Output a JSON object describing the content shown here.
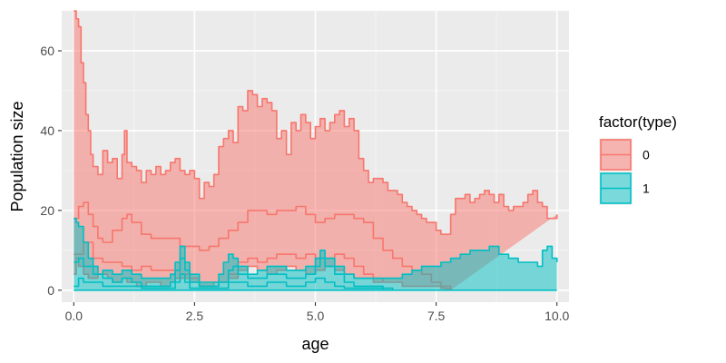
{
  "chart_data": {
    "type": "area",
    "xlabel": "age",
    "ylabel": "Population size",
    "xlim": [
      -0.25,
      10.25
    ],
    "ylim": [
      -3,
      70
    ],
    "xticks": [
      0,
      2.5,
      5,
      7.5,
      10
    ],
    "xtick_labels": [
      "0.0",
      "2.5",
      "5.0",
      "7.5",
      "10.0"
    ],
    "yticks": [
      0,
      20,
      40,
      60
    ],
    "ytick_labels": [
      "0",
      "20",
      "40",
      "60"
    ],
    "grid": true,
    "legend": {
      "title": "factor(type)",
      "position": "right",
      "entries": [
        "0",
        "1"
      ]
    },
    "series": [
      {
        "name": "0",
        "color": "#F8766D",
        "fill": "#F8766D",
        "upper": {
          "x": [
            0.0,
            0.05,
            0.1,
            0.15,
            0.2,
            0.25,
            0.3,
            0.35,
            0.4,
            0.5,
            0.6,
            0.7,
            0.8,
            0.9,
            1.0,
            1.05,
            1.1,
            1.2,
            1.3,
            1.4,
            1.5,
            1.6,
            1.7,
            1.8,
            1.9,
            2.0,
            2.1,
            2.2,
            2.3,
            2.4,
            2.5,
            2.6,
            2.7,
            2.8,
            2.9,
            3.0,
            3.1,
            3.2,
            3.3,
            3.4,
            3.5,
            3.6,
            3.7,
            3.8,
            3.9,
            4.0,
            4.1,
            4.2,
            4.3,
            4.4,
            4.5,
            4.6,
            4.7,
            4.8,
            4.9,
            5.0,
            5.1,
            5.2,
            5.3,
            5.4,
            5.5,
            5.6,
            5.7,
            5.8,
            5.9,
            6.0,
            6.1,
            6.2,
            6.3,
            6.4,
            6.5,
            6.6,
            6.7,
            6.8,
            6.9,
            7.0,
            7.1,
            7.2,
            7.3,
            7.4,
            7.5,
            7.6,
            7.7,
            7.8,
            7.9,
            8.0,
            8.1,
            8.2,
            8.3,
            8.4,
            8.5,
            8.6,
            8.7,
            8.8,
            8.9,
            9.0,
            9.1,
            9.2,
            9.3,
            9.4,
            9.5,
            9.6,
            9.7,
            9.8,
            9.9,
            10.0
          ],
          "y": [
            70,
            68,
            66,
            57,
            52,
            44,
            40,
            34,
            31,
            29,
            35,
            32,
            33,
            28,
            34,
            40,
            32,
            31,
            30,
            27,
            30,
            29,
            31,
            29,
            30,
            32,
            33,
            30,
            29,
            30,
            28,
            23,
            27,
            26,
            29,
            36,
            38,
            40,
            37,
            46,
            45,
            50,
            49,
            46,
            48,
            47,
            45,
            38,
            40,
            34,
            42,
            40,
            44,
            42,
            38,
            41,
            43,
            40,
            42,
            44,
            45,
            41,
            43,
            40,
            33,
            30,
            27,
            28,
            28,
            27,
            25,
            25,
            24,
            22,
            21,
            20,
            19,
            18,
            17,
            17,
            15,
            14,
            14,
            19,
            23,
            23,
            24,
            22,
            23,
            24,
            25,
            24,
            22,
            24,
            21,
            20,
            21,
            21,
            22,
            24,
            25,
            22,
            21,
            18,
            18,
            19
          ]
        },
        "lower": {
          "x": [
            0.0,
            0.05,
            0.1,
            0.2,
            0.3,
            0.4,
            0.5,
            0.6,
            0.7,
            0.8,
            0.9,
            1.0,
            1.1,
            1.2,
            1.3,
            1.4,
            1.5,
            1.6,
            1.7,
            1.8,
            1.9,
            2.0,
            2.1,
            2.2,
            2.3,
            2.4,
            2.5,
            2.6,
            2.7,
            2.8,
            2.9,
            3.0,
            3.2,
            3.4,
            3.6,
            3.8,
            4.0,
            4.2,
            4.4,
            4.6,
            4.8,
            5.0,
            5.2,
            5.4,
            5.6,
            5.8,
            6.0,
            6.2,
            6.4,
            6.6,
            6.8,
            7.0,
            7.2,
            7.4,
            7.6,
            7.7,
            7.8
          ],
          "y": [
            4,
            8,
            6,
            4,
            3,
            3,
            4,
            4,
            3,
            2,
            2,
            3,
            2,
            2,
            1,
            1,
            2,
            2,
            2,
            1,
            1,
            2,
            3,
            3,
            3,
            2,
            2,
            1,
            1,
            1,
            2,
            2,
            3,
            5,
            6,
            5,
            4,
            5,
            6,
            5,
            4,
            5,
            6,
            5,
            4,
            3,
            3,
            2,
            2,
            2,
            1,
            1,
            1,
            1,
            0.5,
            0.3,
            0
          ]
        },
        "mid": {
          "x": [
            0.0,
            0.1,
            0.2,
            0.3,
            0.4,
            0.5,
            0.6,
            0.8,
            1.0,
            1.1,
            1.2,
            1.4,
            1.6,
            1.8,
            2.0,
            2.2,
            2.3,
            2.4,
            2.6,
            2.8,
            3.0,
            3.2,
            3.4,
            3.6,
            3.8,
            4.0,
            4.2,
            4.4,
            4.6,
            4.8,
            5.0,
            5.2,
            5.4,
            5.6,
            5.8,
            6.0,
            6.2,
            6.4,
            6.6,
            6.8,
            7.0,
            7.2,
            7.4,
            7.6,
            7.8
          ],
          "y": [
            18,
            21,
            22,
            19,
            16,
            13,
            12,
            15,
            18,
            19,
            17,
            14,
            13,
            13,
            13,
            11,
            11,
            11,
            10,
            11,
            13,
            15,
            17,
            20,
            20,
            19,
            20,
            20,
            21,
            19,
            17,
            18,
            19,
            19,
            18,
            17,
            13,
            10,
            8,
            6,
            5,
            4,
            2,
            1,
            0
          ]
        },
        "low2": {
          "x": [
            0.0,
            0.2,
            0.4,
            0.6,
            0.8,
            1.0,
            1.2,
            1.4,
            1.6,
            1.8,
            2.0,
            2.2,
            2.4,
            2.6,
            2.8,
            3.0,
            3.2,
            3.4,
            3.6,
            3.8,
            4.0,
            4.2,
            4.4,
            4.6,
            4.8,
            5.0,
            5.2,
            5.4,
            5.6,
            5.8,
            6.0,
            6.2,
            6.4
          ],
          "y": [
            9,
            12,
            8,
            7,
            7,
            6,
            5,
            6,
            5,
            5,
            5,
            4,
            3,
            1,
            1,
            2,
            4,
            7,
            8,
            7,
            8,
            9,
            9,
            8,
            9,
            8,
            8,
            9,
            8,
            6,
            4,
            3,
            2
          ]
        }
      },
      {
        "name": "1",
        "color": "#00BFC4",
        "fill": "#00BFC4",
        "upper": {
          "x": [
            0.0,
            0.05,
            0.1,
            0.2,
            0.3,
            0.4,
            0.5,
            0.6,
            0.8,
            1.0,
            1.2,
            1.4,
            1.6,
            1.8,
            2.0,
            2.1,
            2.2,
            2.3,
            2.4,
            2.6,
            2.8,
            3.0,
            3.1,
            3.2,
            3.3,
            3.4,
            3.6,
            3.8,
            4.0,
            4.2,
            4.4,
            4.6,
            4.8,
            5.0,
            5.1,
            5.2,
            5.4,
            5.6,
            5.8,
            6.0,
            6.2,
            6.4,
            6.6,
            6.8,
            7.0,
            7.2,
            7.4,
            7.6,
            7.8,
            8.0,
            8.2,
            8.4,
            8.6,
            8.8,
            9.0,
            9.2,
            9.4,
            9.6,
            9.7,
            9.8,
            9.9,
            10.0
          ],
          "y": [
            18,
            17,
            16,
            12,
            8,
            6,
            4,
            5,
            4,
            5,
            4,
            3,
            3,
            3,
            4,
            7,
            11,
            7,
            4,
            2,
            2,
            4,
            7,
            9,
            8,
            6,
            4,
            5,
            6,
            6,
            5,
            5,
            6,
            8,
            10,
            8,
            6,
            4,
            3,
            3,
            3,
            3,
            3,
            4,
            5,
            6,
            6,
            7,
            8,
            9,
            10,
            10,
            11,
            9,
            8,
            7,
            7,
            6,
            10,
            11,
            8,
            7
          ]
        },
        "lower": {
          "x": [
            0.0,
            0.5,
            1.0,
            2.0,
            3.0,
            4.0,
            5.0,
            6.0,
            7.0,
            8.0,
            9.0,
            10.0
          ],
          "y": [
            0,
            0,
            0,
            0,
            0,
            0,
            0,
            0,
            0,
            0,
            0,
            0
          ]
        },
        "mid": {
          "x": [
            0.0,
            0.1,
            0.2,
            0.4,
            0.6,
            0.8,
            1.0,
            1.2,
            1.4,
            1.6,
            1.8,
            2.0,
            2.1,
            2.2,
            2.3,
            2.4,
            2.6,
            2.8,
            3.0,
            3.2,
            3.3,
            3.4,
            3.6,
            3.8,
            4.0,
            4.2,
            4.4,
            4.6,
            4.8,
            5.0,
            5.1,
            5.2,
            5.4,
            5.6,
            5.8,
            6.0,
            6.2,
            6.4,
            6.6
          ],
          "y": [
            7,
            8,
            6,
            4,
            3,
            2,
            3,
            2,
            1,
            1,
            1,
            2,
            5,
            8,
            5,
            2,
            1,
            1,
            2,
            5,
            6,
            4,
            3,
            3,
            4,
            4,
            3,
            3,
            4,
            6,
            8,
            6,
            4,
            2,
            1,
            1,
            1,
            0.5,
            0
          ]
        },
        "low2": {
          "x": [
            0.0,
            0.1,
            0.2,
            0.4,
            0.6,
            0.8,
            1.0,
            1.2,
            1.4,
            1.6,
            1.8,
            2.0,
            2.1,
            2.2,
            2.3,
            2.4,
            2.6,
            2.8,
            3.0,
            3.2,
            3.4,
            3.6,
            3.8,
            4.0,
            4.2,
            4.4,
            4.6,
            4.8,
            5.0,
            5.2,
            5.4,
            5.6,
            5.8,
            6.0,
            6.4
          ],
          "y": [
            1,
            3,
            2,
            2,
            1,
            1,
            1,
            1,
            0.5,
            0.5,
            0.5,
            0.5,
            2,
            4,
            2,
            0.5,
            0.5,
            0.5,
            0.5,
            2,
            2,
            1,
            1,
            2,
            2,
            1,
            1,
            2,
            3,
            2,
            1,
            0.5,
            0.5,
            0.5,
            0
          ]
        }
      }
    ]
  }
}
